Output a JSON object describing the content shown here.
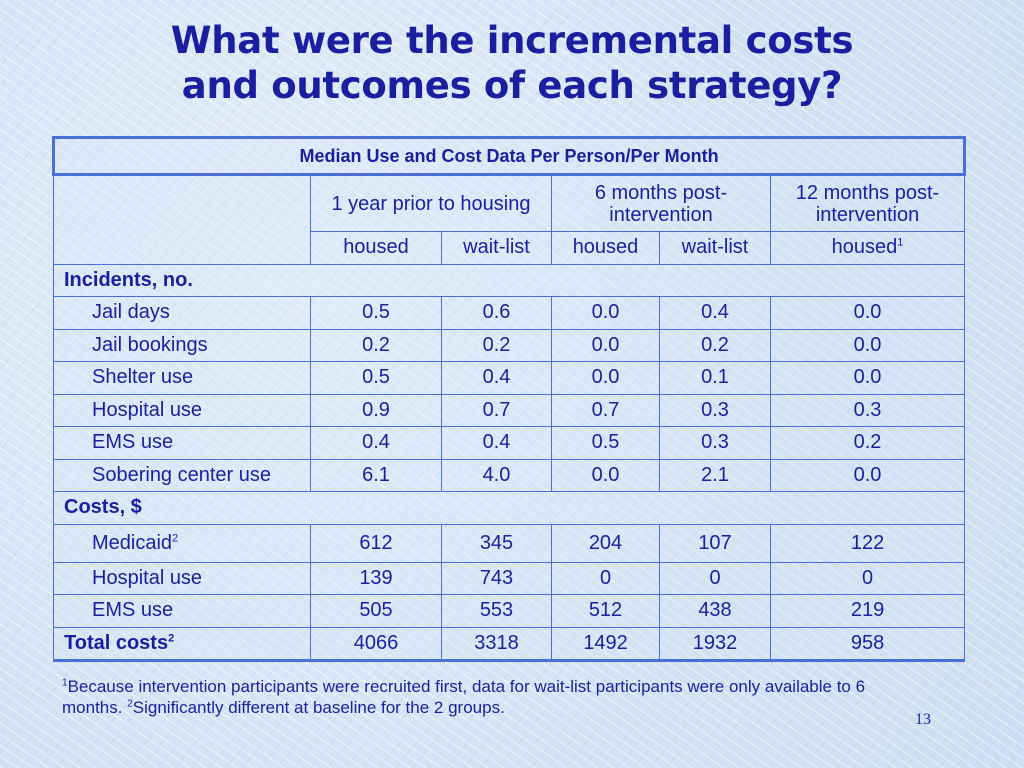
{
  "title": {
    "line1": "What were the incremental costs",
    "line2": "and outcomes of each strategy?"
  },
  "table": {
    "caption": "Median Use and Cost Data Per Person/Per Month",
    "group_headers": [
      "1 year prior to housing",
      "6 months post-intervention",
      "12 months post-intervention"
    ],
    "sub_headers": [
      "housed",
      "wait-list",
      "housed",
      "wait-list",
      "housed"
    ],
    "sub_header_last_sup": "1",
    "incidents_label": "Incidents, no.",
    "incidents": [
      {
        "label": "Jail days",
        "values": [
          "0.5",
          "0.6",
          "0.0",
          "0.4",
          "0.0"
        ]
      },
      {
        "label": "Jail bookings",
        "values": [
          "0.2",
          "0.2",
          "0.0",
          "0.2",
          "0.0"
        ]
      },
      {
        "label": "Shelter use",
        "values": [
          "0.5",
          "0.4",
          "0.0",
          "0.1",
          "0.0"
        ]
      },
      {
        "label": "Hospital use",
        "values": [
          "0.9",
          "0.7",
          "0.7",
          "0.3",
          "0.3"
        ]
      },
      {
        "label": "EMS use",
        "values": [
          "0.4",
          "0.4",
          "0.5",
          "0.3",
          "0.2"
        ]
      },
      {
        "label": "Sobering center use",
        "values": [
          "6.1",
          "4.0",
          "0.0",
          "2.1",
          "0.0"
        ]
      }
    ],
    "costs_label": "Costs, $",
    "costs": [
      {
        "label": "Medicaid",
        "sup": "2",
        "values": [
          "612",
          "345",
          "204",
          "107",
          "122"
        ]
      },
      {
        "label": "Hospital use",
        "sup": "",
        "values": [
          "139",
          "743",
          "0",
          "0",
          "0"
        ]
      },
      {
        "label": "EMS use",
        "sup": "",
        "values": [
          "505",
          "553",
          "512",
          "438",
          "219"
        ]
      }
    ],
    "total": {
      "label": "Total costs",
      "sup": "2",
      "values": [
        "4066",
        "3318",
        "1492",
        "1932",
        "958"
      ]
    }
  },
  "footnote": {
    "sup1": "1",
    "text1": "Because intervention participants were recruited first, data for wait-list participants were only available to 6 months. ",
    "sup2": "2",
    "text2": "Significantly different at baseline for the 2 groups."
  },
  "page_number": "13",
  "colors": {
    "text": "#1a1fa0",
    "border": "#4a6fd8",
    "background": "#dbe8f6"
  }
}
